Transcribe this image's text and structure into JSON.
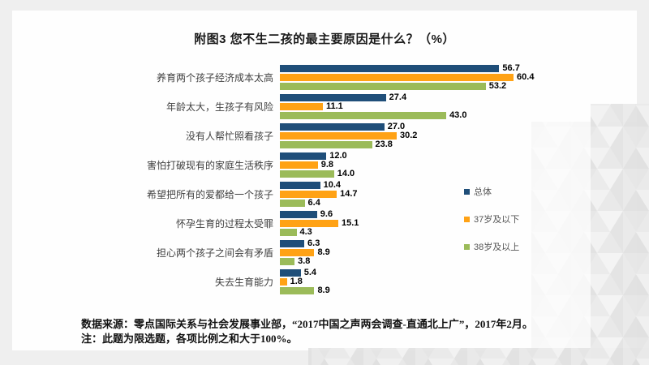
{
  "slide": {
    "title": "附图3 您不生二孩的最主要原因是什么？（%）",
    "footer": {
      "source": "数据来源：零点国际关系与社会发展事业部，“2017中国之声两会调查-直通北上广”，2017年2月。",
      "note": "注：此题为限选题，各项比例之和大于100%。"
    }
  },
  "chart_data": {
    "type": "bar",
    "orientation": "horizontal",
    "title": "附图3 您不生二孩的最主要原因是什么？（%）",
    "categories": [
      "养育两个孩子经济成本太高",
      "年龄太大，生孩子有风险",
      "没有人帮忙照看孩子",
      "害怕打破现有的家庭生活秩序",
      "希望把所有的爱都给一个孩子",
      "怀孕生育的过程太受罪",
      "担心两个孩子之间会有矛盾",
      "失去生育能力"
    ],
    "series": [
      {
        "name": "总体",
        "color": "#1F4E79",
        "values": [
          56.7,
          27.4,
          27.0,
          12.0,
          10.4,
          9.6,
          6.3,
          5.4
        ]
      },
      {
        "name": "37岁及以下",
        "color": "#FFA215",
        "values": [
          60.4,
          11.1,
          30.2,
          9.8,
          14.7,
          15.1,
          8.9,
          1.8
        ]
      },
      {
        "name": "38岁及以上",
        "color": "#9BBB59",
        "values": [
          53.2,
          43.0,
          23.8,
          14.0,
          6.4,
          4.3,
          3.8,
          8.9
        ]
      }
    ],
    "xlim": [
      0,
      65
    ],
    "value_labels": true,
    "grid": false,
    "legend_position": "right"
  },
  "colors": {
    "background": "#efefef",
    "panel": "#fefefe",
    "value_label": "#000000",
    "category_label": "#3f3f3f",
    "legend_text": "#555555"
  }
}
